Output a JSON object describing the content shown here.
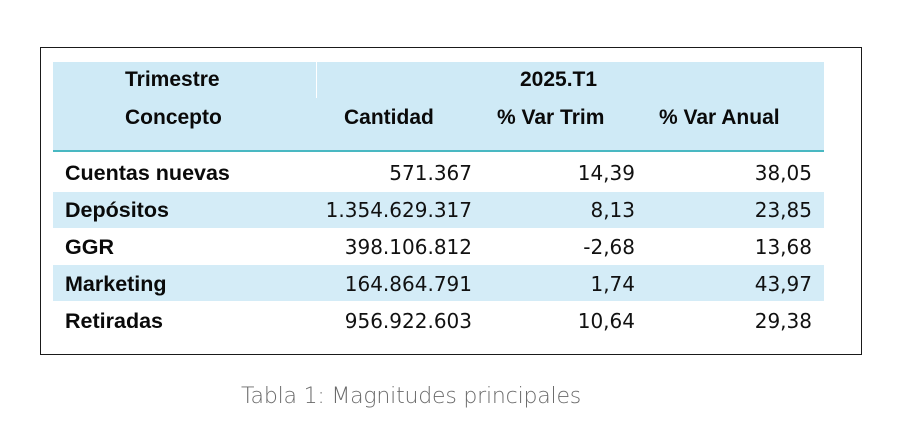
{
  "table": {
    "header_row1": {
      "concept_label": "Trimestre",
      "period": "2025.T1"
    },
    "header_row2": {
      "concept_label": "Concepto",
      "columns": [
        "Cantidad",
        "% Var Trim",
        "% Var Anual"
      ]
    },
    "rows": [
      {
        "concepto": "Cuentas nuevas",
        "cantidad": "571.367",
        "var_trim": "14,39",
        "var_anual": "38,05"
      },
      {
        "concepto": "Depósitos",
        "cantidad": "1.354.629.317",
        "var_trim": "8,13",
        "var_anual": "23,85"
      },
      {
        "concepto": "GGR",
        "cantidad": "398.106.812",
        "var_trim": "-2,68",
        "var_anual": "13,68"
      },
      {
        "concepto": "Marketing",
        "cantidad": "164.864.791",
        "var_trim": "1,74",
        "var_anual": "43,97"
      },
      {
        "concepto": "Retiradas",
        "cantidad": "956.922.603",
        "var_trim": "10,64",
        "var_anual": "29,38"
      }
    ]
  },
  "caption": "Tabla 1: Magnitudes principales",
  "colors": {
    "header_bg": "#cfeaf6",
    "band_bg": "#d4ecf7",
    "header_rule": "#49b8c2",
    "border": "#1a1a1a",
    "caption": "#6a6a6a"
  }
}
